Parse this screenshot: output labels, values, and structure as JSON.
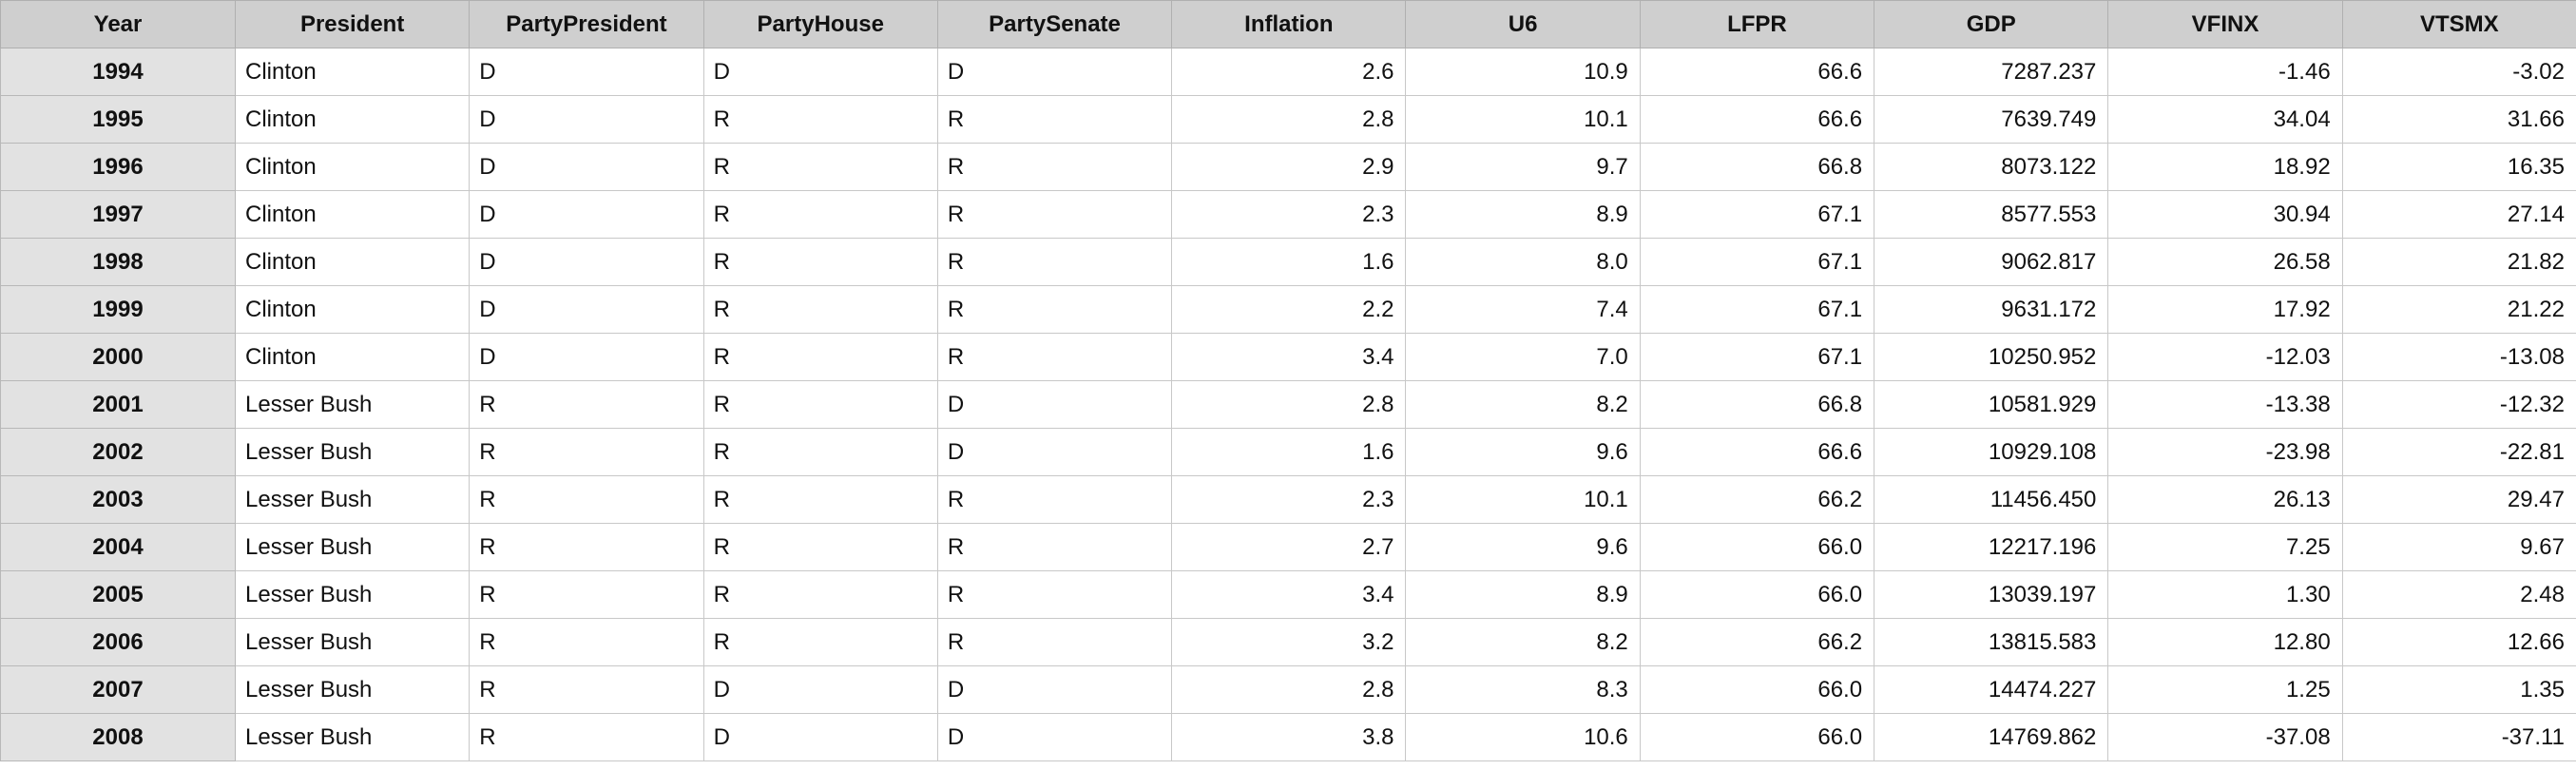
{
  "columns": [
    "Year",
    "President",
    "PartyPresident",
    "PartyHouse",
    "PartySenate",
    "Inflation",
    "U6",
    "LFPR",
    "GDP",
    "VFINX",
    "VTSMX"
  ],
  "rows": [
    [
      "1994",
      "Clinton",
      "D",
      "D",
      "D",
      "2.6",
      "10.9",
      "66.6",
      "7287.237",
      "-1.46",
      "-3.02"
    ],
    [
      "1995",
      "Clinton",
      "D",
      "R",
      "R",
      "2.8",
      "10.1",
      "66.6",
      "7639.749",
      "34.04",
      "31.66"
    ],
    [
      "1996",
      "Clinton",
      "D",
      "R",
      "R",
      "2.9",
      "9.7",
      "66.8",
      "8073.122",
      "18.92",
      "16.35"
    ],
    [
      "1997",
      "Clinton",
      "D",
      "R",
      "R",
      "2.3",
      "8.9",
      "67.1",
      "8577.553",
      "30.94",
      "27.14"
    ],
    [
      "1998",
      "Clinton",
      "D",
      "R",
      "R",
      "1.6",
      "8.0",
      "67.1",
      "9062.817",
      "26.58",
      "21.82"
    ],
    [
      "1999",
      "Clinton",
      "D",
      "R",
      "R",
      "2.2",
      "7.4",
      "67.1",
      "9631.172",
      "17.92",
      "21.22"
    ],
    [
      "2000",
      "Clinton",
      "D",
      "R",
      "R",
      "3.4",
      "7.0",
      "67.1",
      "10250.952",
      "-12.03",
      "-13.08"
    ],
    [
      "2001",
      "Lesser Bush",
      "R",
      "R",
      "D",
      "2.8",
      "8.2",
      "66.8",
      "10581.929",
      "-13.38",
      "-12.32"
    ],
    [
      "2002",
      "Lesser Bush",
      "R",
      "R",
      "D",
      "1.6",
      "9.6",
      "66.6",
      "10929.108",
      "-23.98",
      "-22.81"
    ],
    [
      "2003",
      "Lesser Bush",
      "R",
      "R",
      "R",
      "2.3",
      "10.1",
      "66.2",
      "11456.450",
      "26.13",
      "29.47"
    ],
    [
      "2004",
      "Lesser Bush",
      "R",
      "R",
      "R",
      "2.7",
      "9.6",
      "66.0",
      "12217.196",
      "7.25",
      "9.67"
    ],
    [
      "2005",
      "Lesser Bush",
      "R",
      "R",
      "R",
      "3.4",
      "8.9",
      "66.0",
      "13039.197",
      "1.30",
      "2.48"
    ],
    [
      "2006",
      "Lesser Bush",
      "R",
      "R",
      "R",
      "3.2",
      "8.2",
      "66.2",
      "13815.583",
      "12.80",
      "12.66"
    ],
    [
      "2007",
      "Lesser Bush",
      "R",
      "D",
      "D",
      "2.8",
      "8.3",
      "66.0",
      "14474.227",
      "1.25",
      "1.35"
    ],
    [
      "2008",
      "Lesser Bush",
      "R",
      "D",
      "D",
      "3.8",
      "10.6",
      "66.0",
      "14769.862",
      "-37.08",
      "-37.11"
    ]
  ]
}
